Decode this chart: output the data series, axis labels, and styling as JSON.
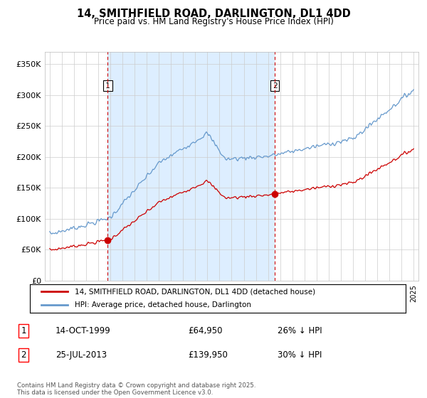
{
  "title": "14, SMITHFIELD ROAD, DARLINGTON, DL1 4DD",
  "subtitle": "Price paid vs. HM Land Registry's House Price Index (HPI)",
  "sale1_date": "14-OCT-1999",
  "sale1_price": 64950,
  "sale1_hpi_diff": "26% ↓ HPI",
  "sale2_date": "25-JUL-2013",
  "sale2_price": 139950,
  "sale2_hpi_diff": "30% ↓ HPI",
  "legend_line1": "14, SMITHFIELD ROAD, DARLINGTON, DL1 4DD (detached house)",
  "legend_line2": "HPI: Average price, detached house, Darlington",
  "footer": "Contains HM Land Registry data © Crown copyright and database right 2025.\nThis data is licensed under the Open Government Licence v3.0.",
  "line_color_red": "#cc0000",
  "line_color_blue": "#6699cc",
  "shade_color": "#ddeeff",
  "vline_color": "#cc0000",
  "ylim": [
    0,
    370000
  ],
  "yticks": [
    0,
    50000,
    100000,
    150000,
    200000,
    250000,
    300000,
    350000
  ],
  "ytick_labels": [
    "£0",
    "£50K",
    "£100K",
    "£150K",
    "£200K",
    "£250K",
    "£300K",
    "£350K"
  ],
  "sale1_x": 1999.79,
  "sale2_x": 2013.56,
  "xmin": 1994.6,
  "xmax": 2025.4,
  "background_color": "#ffffff",
  "grid_color": "#cccccc",
  "grid_color_minor": "#e8e8e8"
}
